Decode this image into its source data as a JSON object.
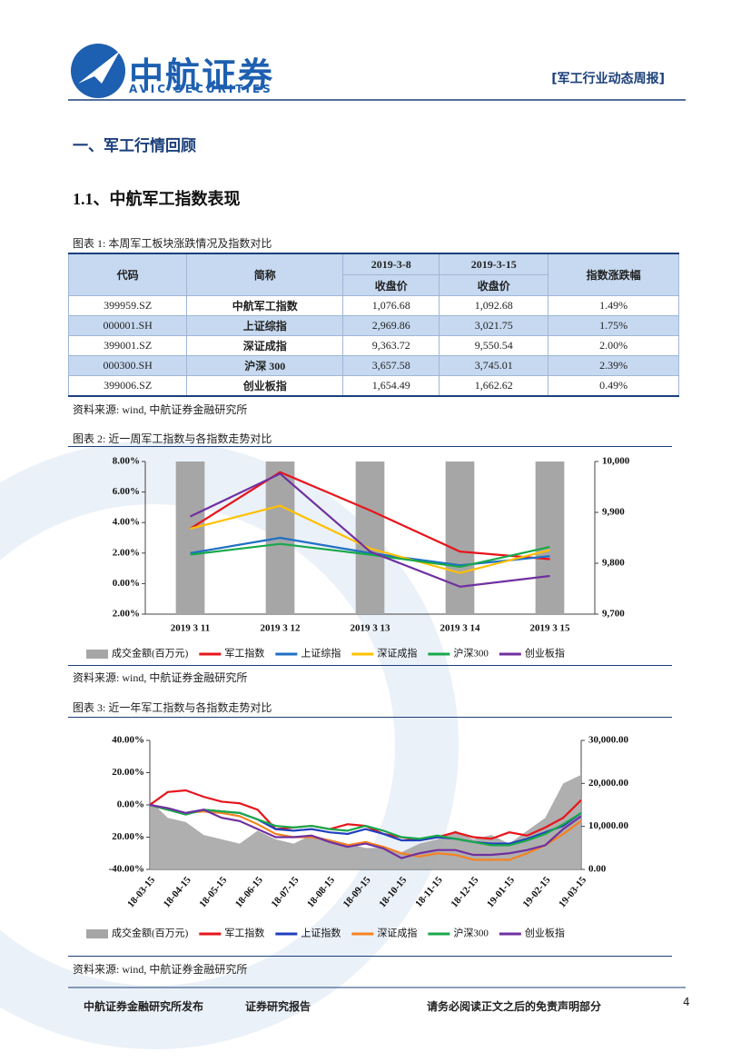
{
  "header": {
    "brand": "中航证券",
    "brand_en": "AVIC SECURITIES",
    "report_type": "[军工行业动态周报]"
  },
  "section_title": "一、军工行情回顾",
  "subsection_title": "1.1、中航军工指数表现",
  "table": {
    "caption": "图表 1: 本周军工板块涨跌情况及指数对比",
    "header": [
      [
        "代码",
        "简称",
        "2019-3-8",
        "2019-3-15",
        "指数涨跌幅"
      ],
      [
        "收盘价",
        "收盘价"
      ]
    ],
    "rows": [
      [
        "399959.SZ",
        "中航军工指数",
        "1,076.68",
        "1,092.68",
        "1.49%"
      ],
      [
        "000001.SH",
        "上证综指",
        "2,969.86",
        "3,021.75",
        "1.75%"
      ],
      [
        "399001.SZ",
        "深证成指",
        "9,363.72",
        "9,550.54",
        "2.00%"
      ],
      [
        "000300.SH",
        "沪深 300",
        "3,657.58",
        "3,745.01",
        "2.39%"
      ],
      [
        "399006.SZ",
        "创业板指",
        "1,654.49",
        "1,662.62",
        "0.49%"
      ]
    ],
    "source": "资料来源: wind, 中航证券金融研究所"
  },
  "chart_data": [
    {
      "type": "combo",
      "title": "图表 2: 近一周军工指数与各指数走势对比",
      "source": "资料来源: wind, 中航证券金融研究所",
      "categories": [
        "2019 3 11",
        "2019 3 12",
        "2019 3 13",
        "2019 3 14",
        "2019 3 15"
      ],
      "ylim": [
        -2,
        8
      ],
      "yticks": [
        {
          "value": 8,
          "label": "8.00%"
        },
        {
          "value": 6,
          "label": "6.00%"
        },
        {
          "value": 4,
          "label": "4.00%"
        },
        {
          "value": 2,
          "label": "2.00%"
        },
        {
          "value": 0,
          "label": "0.00%"
        },
        {
          "value": -2,
          "label": "2.00%"
        }
      ],
      "y2lim": [
        9700,
        10000
      ],
      "y2ticks": [
        {
          "value": 10000,
          "label": "10,000"
        },
        {
          "value": 9900,
          "label": "9,900"
        },
        {
          "value": 9800,
          "label": "9,800"
        },
        {
          "value": 9700,
          "label": "9,700"
        }
      ],
      "grid": false,
      "legend": "bottom",
      "series": [
        {
          "name": "成交金额(百万元)",
          "type": "bar",
          "axis": "y2",
          "color": "#a6a6a6",
          "values": [
            10000,
            10000,
            10000,
            10000,
            10000
          ]
        },
        {
          "name": "军工指数",
          "type": "line",
          "color": "#e8141b",
          "values": [
            3.6,
            7.3,
            4.8,
            2.1,
            1.6
          ]
        },
        {
          "name": "上证综指",
          "type": "line",
          "color": "#1f6fc5",
          "values": [
            2.0,
            3.0,
            2.0,
            1.2,
            1.8
          ]
        },
        {
          "name": "深证成指",
          "type": "line",
          "color": "#ffc000",
          "values": [
            3.6,
            5.1,
            2.3,
            0.7,
            2.2
          ]
        },
        {
          "name": "沪深300",
          "type": "line",
          "color": "#18a84a",
          "values": [
            1.9,
            2.6,
            1.9,
            1.1,
            2.4
          ]
        },
        {
          "name": "创业板指",
          "type": "line",
          "color": "#7030a0",
          "values": [
            4.4,
            7.2,
            2.1,
            -0.2,
            0.5
          ]
        }
      ]
    },
    {
      "type": "combo",
      "title": "图表 3: 近一年军工指数与各指数走势对比",
      "source": "资料来源: wind, 中航证券金融研究所",
      "categories": [
        "18-03-15",
        null,
        "18-04-15",
        null,
        "18-05-15",
        null,
        "18-06-15",
        null,
        "18-07-15",
        null,
        "18-08-15",
        null,
        "18-09-15",
        null,
        "18-10-15",
        null,
        "18-11-15",
        null,
        "18-12-15",
        null,
        "19-01-15",
        null,
        "19-02-15",
        null,
        "19-03-15"
      ],
      "ylim": [
        -40,
        40
      ],
      "yticks": [
        {
          "value": 40,
          "label": "40.00%"
        },
        {
          "value": 20,
          "label": "20.00%"
        },
        {
          "value": 0,
          "label": "0.00%"
        },
        {
          "value": -20,
          "label": "20.00%"
        },
        {
          "value": -40,
          "label": "-40.00%"
        }
      ],
      "y2lim": [
        0,
        30000
      ],
      "y2ticks": [
        {
          "value": 30000,
          "label": "30,000.00"
        },
        {
          "value": 20000,
          "label": "20,000.00"
        },
        {
          "value": 10000,
          "label": "10,000.00"
        },
        {
          "value": 0,
          "label": "0.00"
        }
      ],
      "grid": false,
      "legend": "bottom",
      "series": [
        {
          "name": "成交金额(百万元)",
          "type": "area",
          "axis": "y2",
          "color": "#a6a6a6",
          "values": [
            16000,
            12000,
            11000,
            8000,
            7000,
            6000,
            9000,
            7000,
            6000,
            8000,
            7000,
            6000,
            5000,
            5000,
            4000,
            6000,
            7000,
            9000,
            7000,
            8000,
            6000,
            9000,
            12000,
            20000,
            22000
          ]
        },
        {
          "name": "军工指数",
          "type": "line",
          "color": "#e8141b",
          "values": [
            0,
            8,
            9,
            5,
            2,
            1,
            -3,
            -15,
            -14,
            -13,
            -15,
            -12,
            -13,
            -18,
            -20,
            -22,
            -20,
            -17,
            -20,
            -21,
            -17,
            -19,
            -14,
            -8,
            3
          ]
        },
        {
          "name": "上证指数",
          "type": "line",
          "color": "#1f3fbf",
          "values": [
            0,
            -3,
            -5,
            -3,
            -4,
            -5,
            -9,
            -15,
            -16,
            -15,
            -17,
            -18,
            -15,
            -18,
            -22,
            -22,
            -20,
            -21,
            -23,
            -24,
            -24,
            -21,
            -17,
            -13,
            -5
          ]
        },
        {
          "name": "深证成指",
          "type": "line",
          "color": "#f58220",
          "values": [
            0,
            -3,
            -5,
            -4,
            -5,
            -7,
            -12,
            -18,
            -20,
            -20,
            -22,
            -25,
            -23,
            -26,
            -30,
            -32,
            -30,
            -31,
            -34,
            -34,
            -34,
            -30,
            -25,
            -18,
            -10
          ]
        },
        {
          "name": "沪深300",
          "type": "line",
          "color": "#18a84a",
          "values": [
            0,
            -3,
            -6,
            -3,
            -4,
            -5,
            -9,
            -13,
            -14,
            -13,
            -15,
            -16,
            -13,
            -16,
            -20,
            -21,
            -19,
            -21,
            -23,
            -25,
            -25,
            -22,
            -18,
            -12,
            -5
          ]
        },
        {
          "name": "创业板指",
          "type": "line",
          "color": "#7030a0",
          "values": [
            0,
            -2,
            -5,
            -3,
            -8,
            -10,
            -15,
            -20,
            -20,
            -19,
            -23,
            -26,
            -24,
            -27,
            -33,
            -30,
            -28,
            -28,
            -31,
            -31,
            -30,
            -28,
            -25,
            -15,
            -7
          ]
        }
      ]
    }
  ],
  "footer": {
    "publisher": "中航证券金融研究所发布",
    "doc_type": "证券研究报告",
    "disclaimer": "请务必阅读正文之后的免责声明部分",
    "page": "4"
  }
}
